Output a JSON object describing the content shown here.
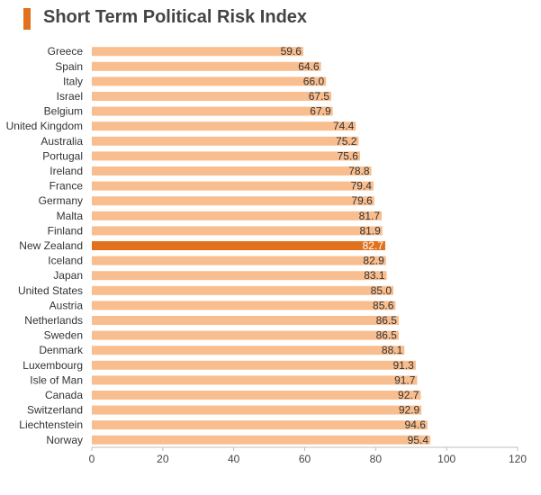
{
  "title": "Short Term Political Risk Index",
  "colors": {
    "accent": "#E2711D",
    "bar": "#F9BE8F",
    "highlight": "#E2711D",
    "highlight_label": "#FFFFFF",
    "axis": "#BFBFBF"
  },
  "chart_data": {
    "type": "bar",
    "orientation": "horizontal",
    "title": "Short Term Political Risk Index",
    "categories": [
      "Greece",
      "Spain",
      "Italy",
      "Israel",
      "Belgium",
      "United Kingdom",
      "Australia",
      "Portugal",
      "Ireland",
      "France",
      "Germany",
      "Malta",
      "Finland",
      "New Zealand",
      "Iceland",
      "Japan",
      "United States",
      "Austria",
      "Netherlands",
      "Sweden",
      "Denmark",
      "Luxembourg",
      "Isle of Man",
      "Canada",
      "Switzerland",
      "Liechtenstein",
      "Norway"
    ],
    "values": [
      59.6,
      64.6,
      66.0,
      67.5,
      67.9,
      74.4,
      75.2,
      75.6,
      78.8,
      79.4,
      79.6,
      81.7,
      81.9,
      82.7,
      82.9,
      83.1,
      85.0,
      85.6,
      86.5,
      86.5,
      88.1,
      91.3,
      91.7,
      92.7,
      92.9,
      94.6,
      95.4
    ],
    "value_labels": [
      "59.6",
      "64.6",
      "66.0",
      "67.5",
      "67.9",
      "74.4",
      "75.2",
      "75.6",
      "78.8",
      "79.4",
      "79.6",
      "81.7",
      "81.9",
      "82.7",
      "82.9",
      "83.1",
      "85.0",
      "85.6",
      "86.5",
      "86.5",
      "88.1",
      "91.3",
      "91.7",
      "92.7",
      "92.9",
      "94.6",
      "95.4"
    ],
    "highlight_category": "New Zealand",
    "xlim": [
      0,
      120
    ],
    "xticks": [
      0,
      20,
      40,
      60,
      80,
      100,
      120
    ],
    "xtick_labels": [
      "0",
      "20",
      "40",
      "60",
      "80",
      "100",
      "120"
    ],
    "xlabel": "",
    "ylabel": "",
    "grid": false,
    "legend": "none"
  }
}
